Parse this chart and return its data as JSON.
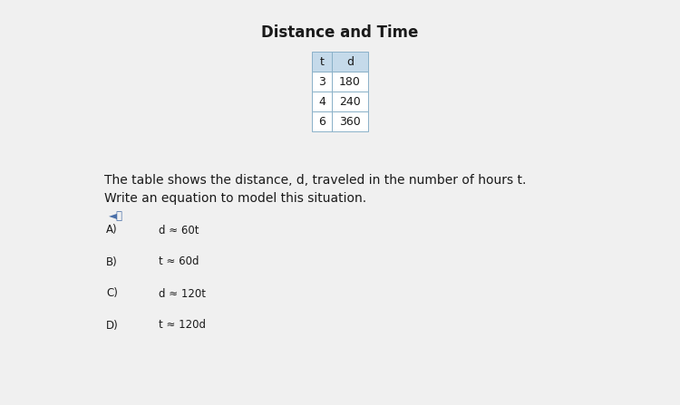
{
  "title": "Distance and Time",
  "table_headers": [
    "t",
    "d"
  ],
  "table_data": [
    [
      "3",
      "180"
    ],
    [
      "4",
      "240"
    ],
    [
      "6",
      "360"
    ]
  ],
  "header_bg": "#c5daea",
  "cell_border": "#8ab0c8",
  "description_line1": "The table shows the distance, d, traveled in the number of hours t.",
  "description_line2": "Write an equation to model this situation.",
  "choices": [
    [
      "A)",
      "d ≈ 60t"
    ],
    [
      "B)",
      "t ≈ 60d"
    ],
    [
      "C)",
      "d ≈ 120t"
    ],
    [
      "D)",
      "t ≈ 120d"
    ]
  ],
  "bg_color": "#f0f0f0",
  "text_color": "#1a1a1a",
  "choice_color": "#3a3a6a",
  "speaker_color": "#4a6fa8",
  "title_fontsize": 12,
  "body_fontsize": 10,
  "table_fontsize": 9,
  "choice_fontsize": 8.5
}
